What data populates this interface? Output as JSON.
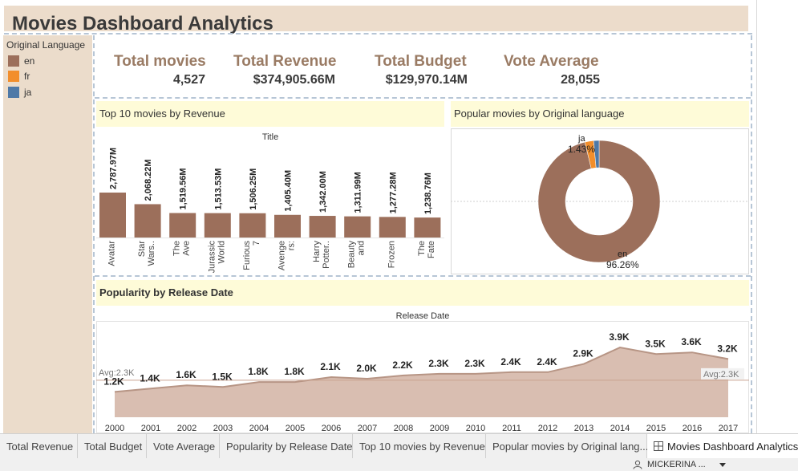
{
  "dashboard_title": "Movies Dashboard Analytics",
  "legend": {
    "title": "Original Language",
    "items": [
      {
        "label": "en",
        "color": "#9c6f5b"
      },
      {
        "label": "fr",
        "color": "#f28e2b"
      },
      {
        "label": "ja",
        "color": "#4e79a7"
      }
    ]
  },
  "kpis": [
    {
      "label": "Total movies",
      "value": "4,527"
    },
    {
      "label": "Total Revenue",
      "value": "$374,905.66M"
    },
    {
      "label": "Total Budget",
      "value": "$129,970.14M"
    },
    {
      "label": "Vote Average",
      "value": "28,055"
    }
  ],
  "panels": {
    "top10_title": "Top 10 movies by Revenue",
    "top10_axis_title": "Title",
    "donut_title": "Popular movies by Original language",
    "popularity_title": "Popularity by Release Date",
    "popularity_axis_title": "Release Date"
  },
  "tabs": [
    {
      "label": "Total Revenue"
    },
    {
      "label": "Total Budget"
    },
    {
      "label": "Vote Average"
    },
    {
      "label": "Popularity by Release Date"
    },
    {
      "label": "Top 10 movies by Revenue"
    },
    {
      "label": "Popular movies by Original lang..."
    },
    {
      "label": "Movies Dashboard Analytics",
      "active": true
    }
  ],
  "tab_icon": "dashboard-grid-icon",
  "user": {
    "name": "MICKERINA ...",
    "icon": "user-icon",
    "menu_icon": "caret-down-icon"
  },
  "chart_data": [
    {
      "type": "bar",
      "title": "Top 10 movies by Revenue",
      "xlabel": "Title",
      "color": "#9c6f5b",
      "categories": [
        "Avatar",
        "Star Wars..",
        "The Ave ngers",
        "Jurassic World",
        "Furious 7",
        "Avenge rs: Ag..",
        "Harry Potter..",
        "Beauty and th..",
        "Frozen",
        "The Fate .."
      ],
      "values": [
        2787.97,
        2068.22,
        1519.56,
        1513.53,
        1506.25,
        1405.4,
        1342.0,
        1311.99,
        1277.28,
        1238.76
      ],
      "value_labels": [
        "2,787.97M",
        "2,068.22M",
        "1,519.56M",
        "1,513.53M",
        "1,506.25M",
        "1,405.40M",
        "1,342.00M",
        "1,311.99M",
        "1,277.28M",
        "1,238.76M"
      ]
    },
    {
      "type": "pie",
      "title": "Popular movies by Original language",
      "slices": [
        {
          "label": "en",
          "value": 96.26,
          "display": "96.26%",
          "color": "#9c6f5b"
        },
        {
          "label": "fr",
          "value": 2.31,
          "color": "#f28e2b"
        },
        {
          "label": "ja",
          "value": 1.43,
          "display": "1.43%",
          "color": "#4e79a7"
        }
      ]
    },
    {
      "type": "area",
      "title": "Popularity by Release Date",
      "xlabel": "Release Date",
      "color": "#d9beb1",
      "line_color": "#b79585",
      "x": [
        "2000",
        "2001",
        "2002",
        "2003",
        "2004",
        "2005",
        "2006",
        "2007",
        "2008",
        "2009",
        "2010",
        "2011",
        "2012",
        "2013",
        "2014",
        "2015",
        "2016",
        "2017"
      ],
      "values": [
        1.2,
        1.4,
        1.6,
        1.5,
        1.8,
        1.8,
        2.1,
        2.0,
        2.2,
        2.3,
        2.3,
        2.4,
        2.4,
        2.9,
        3.9,
        3.5,
        3.6,
        3.2
      ],
      "value_labels": [
        "1.2K",
        "1.4K",
        "1.6K",
        "1.5K",
        "1.8K",
        "1.8K",
        "2.1K",
        "2.0K",
        "2.2K",
        "2.3K",
        "2.3K",
        "2.4K",
        "2.4K",
        "2.9K",
        "3.9K",
        "3.5K",
        "3.6K",
        "3.2K"
      ],
      "reference_line": {
        "value": 2.3,
        "label": "Avg:2.3K",
        "label_right": "Avg:2.3K"
      }
    }
  ]
}
